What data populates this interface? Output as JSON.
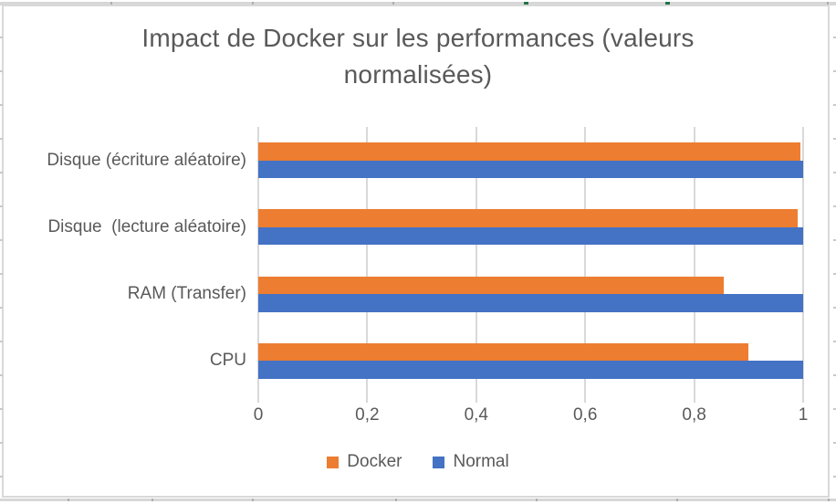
{
  "chart_data": {
    "type": "bar",
    "orientation": "horizontal",
    "title": "Impact de Docker sur les performances (valeurs normalisées)",
    "categories_top_to_bottom": [
      "Disque (écriture aléatoire)",
      "Disque  (lecture aléatoire)",
      "RAM (Transfer)",
      "CPU"
    ],
    "series": [
      {
        "name": "Docker",
        "color": "#ED7D31",
        "values_top_to_bottom": [
          0.995,
          0.99,
          0.855,
          0.9
        ]
      },
      {
        "name": "Normal",
        "color": "#4472C4",
        "values_top_to_bottom": [
          1.0,
          1.0,
          1.0,
          1.0
        ]
      }
    ],
    "xlim": [
      0,
      1
    ],
    "x_tick_labels": [
      "0",
      "0,2",
      "0,4",
      "0,6",
      "0,8",
      "1"
    ],
    "grid": true,
    "legend_position": "bottom",
    "legend_labels": [
      "Docker",
      "Normal"
    ]
  },
  "colors": {
    "text": "#595959",
    "gridline": "#d9d9d9",
    "chart_border": "#d9d9d9",
    "docker_orange": "#ED7D31",
    "normal_blue": "#4472C4",
    "sheet_line": "#d7d7d7",
    "sheet_tick": "#aeaeae",
    "sheet_green": "#217346",
    "row_stub": "#c9c9c9"
  }
}
